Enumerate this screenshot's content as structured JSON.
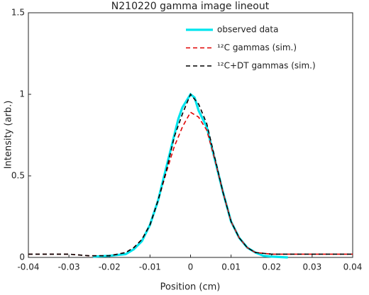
{
  "chart_data": {
    "type": "line",
    "title": "N210220 gamma image lineout",
    "x_label": "Position (cm)",
    "y_label": "Intensity (arb.)",
    "xlim": [
      -0.04,
      0.04
    ],
    "ylim": [
      0,
      1.5
    ],
    "xticks": [
      -0.04,
      -0.03,
      -0.02,
      -0.01,
      0,
      0.01,
      0.02,
      0.03,
      0.04
    ],
    "yticks": [
      0,
      0.5,
      1,
      1.5
    ],
    "legend": "upper right",
    "series": [
      {
        "name": "observed data",
        "color": "#00e5ee",
        "style": "solid",
        "x": [
          -0.024,
          -0.02,
          -0.016,
          -0.014,
          -0.012,
          -0.01,
          -0.008,
          -0.006,
          -0.004,
          -0.003,
          -0.002,
          -0.001,
          0,
          0.001,
          0.002,
          0.004,
          0.006,
          0.008,
          0.01,
          0.012,
          0.014,
          0.016,
          0.018,
          0.02,
          0.024
        ],
        "values": [
          0.005,
          0.01,
          0.02,
          0.05,
          0.1,
          0.2,
          0.35,
          0.55,
          0.75,
          0.85,
          0.92,
          0.96,
          1.0,
          0.98,
          0.9,
          0.8,
          0.6,
          0.4,
          0.22,
          0.12,
          0.06,
          0.03,
          0.01,
          0.005,
          0.0
        ]
      },
      {
        "name": "¹²C gammas (sim.)",
        "color": "#e00000",
        "style": "dashed",
        "x": [
          -0.04,
          -0.03,
          -0.025,
          -0.02,
          -0.016,
          -0.014,
          -0.012,
          -0.01,
          -0.008,
          -0.006,
          -0.004,
          -0.002,
          0,
          0.002,
          0.004,
          0.006,
          0.008,
          0.01,
          0.012,
          0.014,
          0.016,
          0.02,
          0.03,
          0.04
        ],
        "values": [
          0.02,
          0.02,
          0.01,
          0.01,
          0.03,
          0.06,
          0.11,
          0.2,
          0.35,
          0.52,
          0.68,
          0.8,
          0.89,
          0.86,
          0.78,
          0.6,
          0.4,
          0.22,
          0.12,
          0.06,
          0.03,
          0.02,
          0.02,
          0.02
        ]
      },
      {
        "name": "¹²C+DT gammas (sim.)",
        "color": "#000000",
        "style": "dashed",
        "x": [
          -0.04,
          -0.03,
          -0.025,
          -0.02,
          -0.016,
          -0.014,
          -0.012,
          -0.01,
          -0.008,
          -0.006,
          -0.004,
          -0.002,
          0,
          0.002,
          0.004,
          0.006,
          0.008,
          0.01,
          0.012,
          0.014,
          0.016,
          0.02,
          0.03,
          0.04
        ],
        "values": [
          0.02,
          0.02,
          0.01,
          0.01,
          0.03,
          0.06,
          0.11,
          0.2,
          0.35,
          0.53,
          0.74,
          0.88,
          1.0,
          0.94,
          0.82,
          0.61,
          0.4,
          0.22,
          0.12,
          0.06,
          0.03,
          0.02,
          0.02,
          0.02
        ]
      }
    ]
  }
}
